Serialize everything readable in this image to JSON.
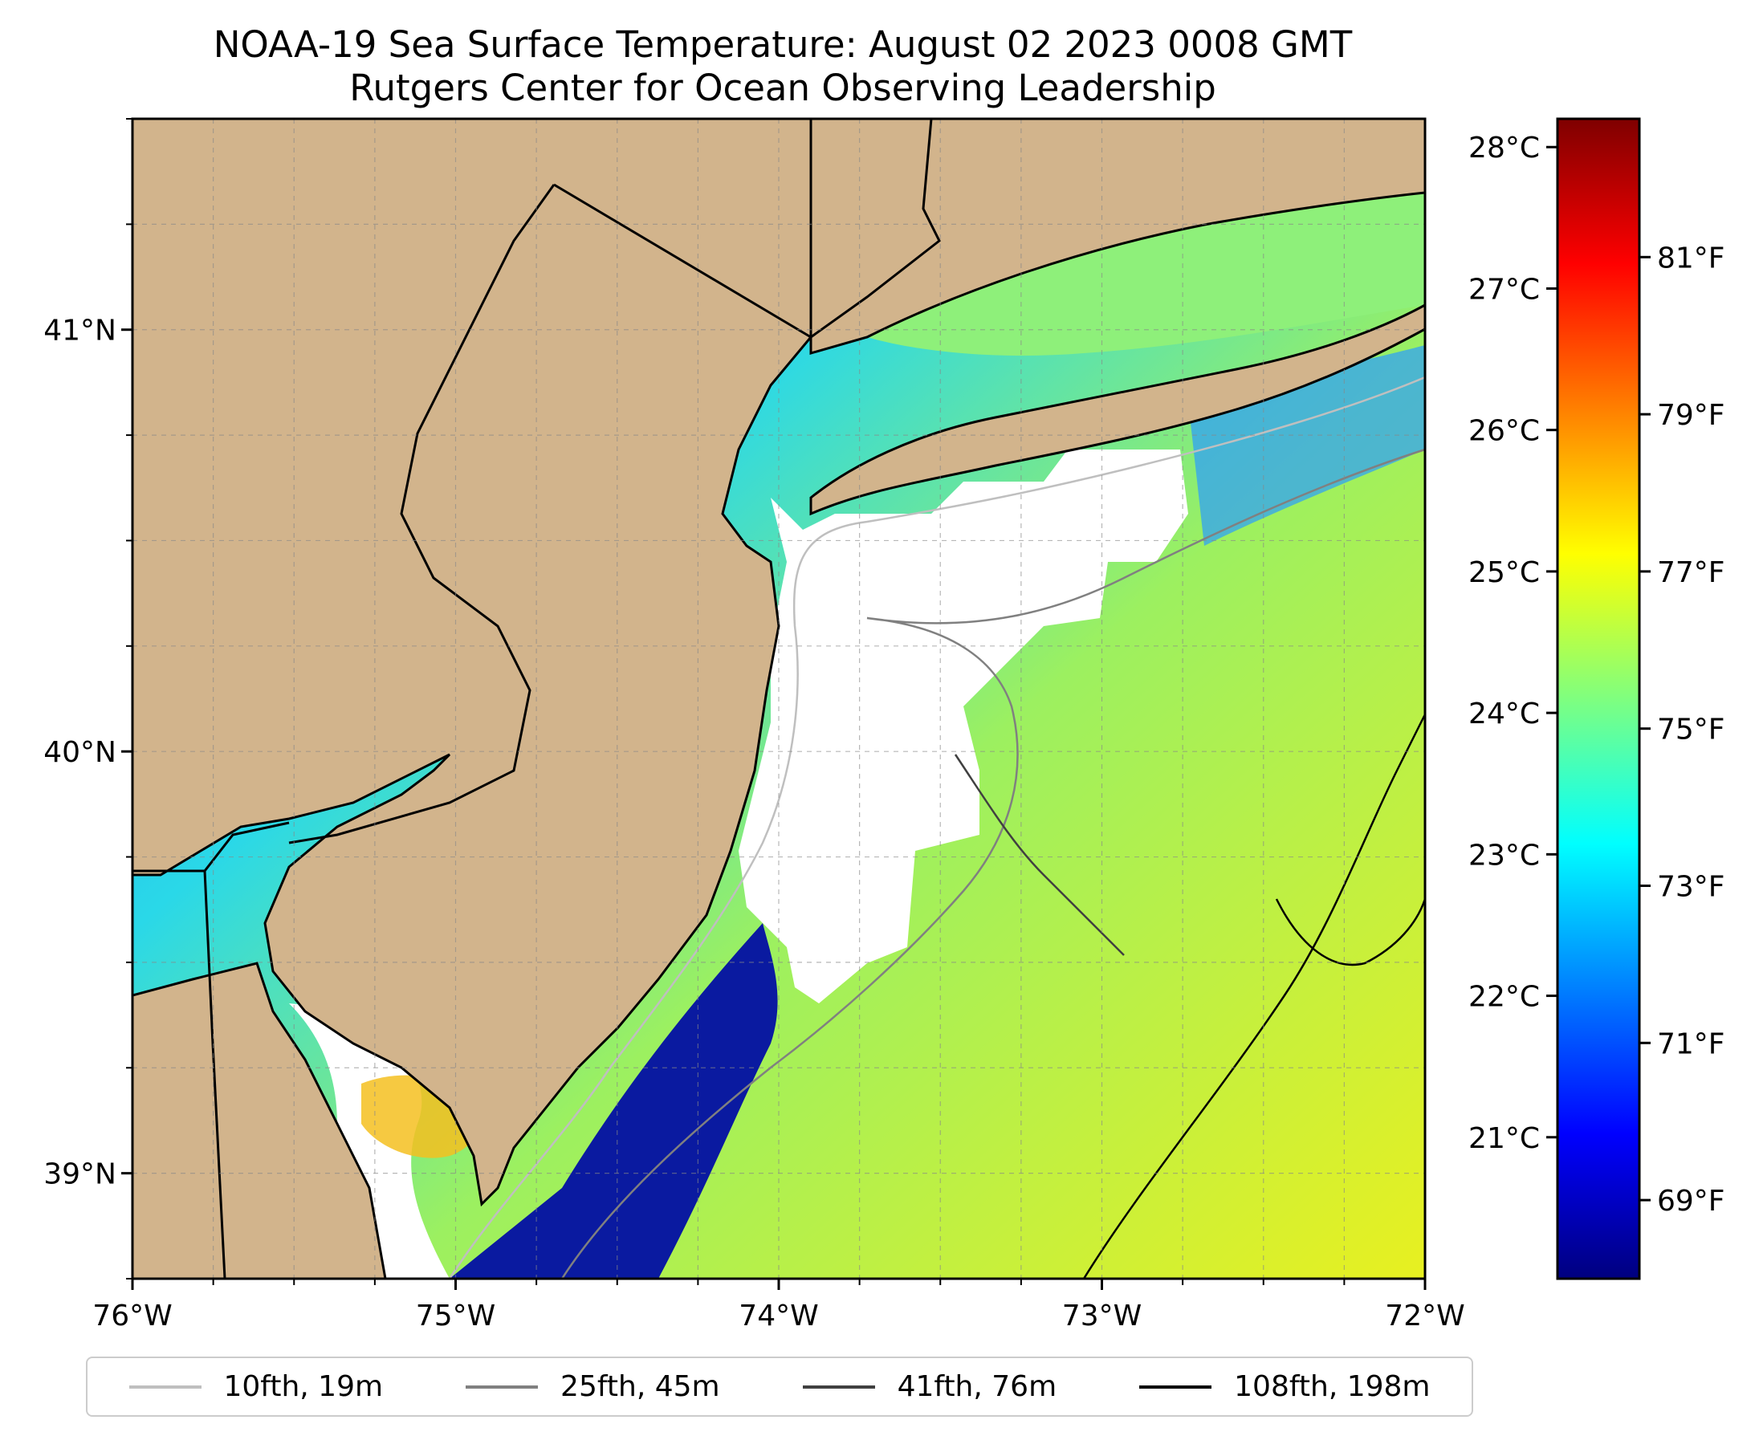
{
  "title": {
    "line1": "NOAA-19 Sea Surface Temperature: August 02 2023 0008 GMT",
    "line2": "Rutgers Center for Ocean Observing Leadership"
  },
  "map": {
    "lon_range": [
      -76,
      -72
    ],
    "lat_range": [
      38.75,
      41.5
    ],
    "lon_ticks": [
      {
        "value": -76,
        "label": "76°W"
      },
      {
        "value": -75,
        "label": "75°W"
      },
      {
        "value": -74,
        "label": "74°W"
      },
      {
        "value": -73,
        "label": "73°W"
      },
      {
        "value": -72,
        "label": "72°W"
      }
    ],
    "lat_ticks": [
      {
        "value": 39,
        "label": "39°N"
      },
      {
        "value": 40,
        "label": "40°N"
      },
      {
        "value": 41,
        "label": "41°N"
      }
    ],
    "grid": true,
    "land_color": "#d2b48c",
    "cloud_mask_color": "#ffffff"
  },
  "colorbar": {
    "colormap": "jet",
    "celsius_ticks": [
      {
        "value": 21,
        "label": "21°C"
      },
      {
        "value": 22,
        "label": "22°C"
      },
      {
        "value": 23,
        "label": "23°C"
      },
      {
        "value": 24,
        "label": "24°C"
      },
      {
        "value": 25,
        "label": "25°C"
      },
      {
        "value": 26,
        "label": "26°C"
      },
      {
        "value": 27,
        "label": "27°C"
      },
      {
        "value": 28,
        "label": "28°C"
      }
    ],
    "fahrenheit_ticks": [
      {
        "value": 69,
        "label": "69°F"
      },
      {
        "value": 71,
        "label": "71°F"
      },
      {
        "value": 73,
        "label": "73°F"
      },
      {
        "value": 75,
        "label": "75°F"
      },
      {
        "value": 77,
        "label": "77°F"
      },
      {
        "value": 79,
        "label": "79°F"
      },
      {
        "value": 81,
        "label": "81°F"
      }
    ],
    "celsius_range": [
      20.0,
      28.2
    ]
  },
  "legend": [
    {
      "label": "10fth, 19m",
      "color": "#bfbfbf"
    },
    {
      "label": "25fth, 45m",
      "color": "#808080"
    },
    {
      "label": "41fth, 76m",
      "color": "#404040"
    },
    {
      "label": "108fth, 198m",
      "color": "#000000"
    }
  ]
}
